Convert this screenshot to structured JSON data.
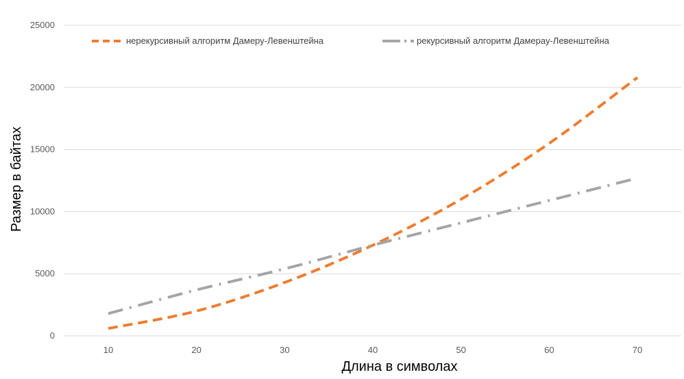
{
  "chart_data": {
    "type": "line",
    "title": "",
    "xlabel": "Длина в символах",
    "ylabel": "Размер в байтах",
    "x": [
      10,
      20,
      30,
      40,
      50,
      60,
      70
    ],
    "x_ticks": [
      10,
      20,
      30,
      40,
      50,
      60,
      70
    ],
    "y_ticks": [
      0,
      5000,
      10000,
      15000,
      20000,
      25000
    ],
    "ylim": [
      0,
      25000
    ],
    "grid": "horizontal",
    "legend_position": "top",
    "series": [
      {
        "name": "нерекурсивный алгоритм Дамеру-Левенштейна",
        "values": [
          600,
          2000,
          4300,
          7300,
          11000,
          15500,
          20800
        ],
        "color": "#ED7D31",
        "dash": "dashed"
      },
      {
        "name": "рекурсивный алгоритм Дамерау-Левенштейна",
        "values": [
          1800,
          3700,
          5400,
          7300,
          9100,
          10900,
          12700
        ],
        "color": "#A5A5A5",
        "dash": "long-dash-dot"
      }
    ]
  }
}
